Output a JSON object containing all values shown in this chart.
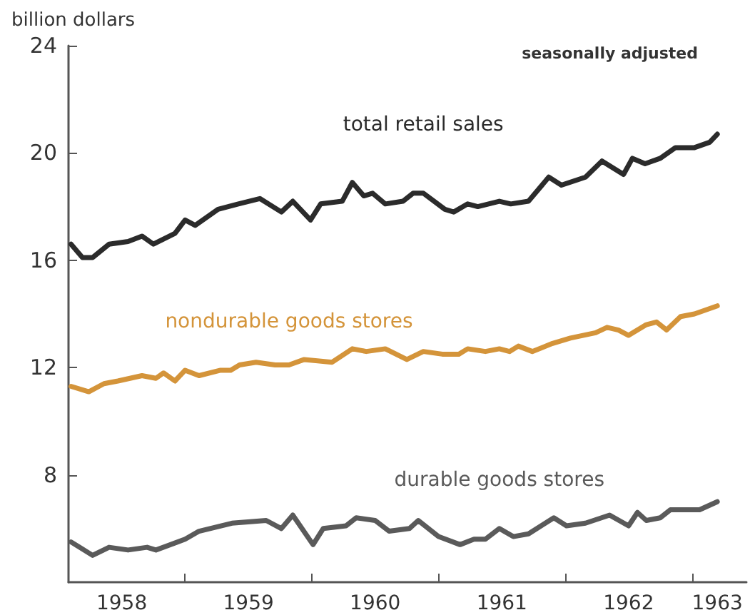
{
  "chart_data": {
    "type": "line",
    "ylabel": "billion dollars",
    "annotations": [
      "seasonally adjusted"
    ],
    "xlim": [
      1958.08,
      1963.43
    ],
    "ylim": [
      4,
      24
    ],
    "yticks": [
      8,
      12,
      16,
      20,
      24
    ],
    "xticks": [
      {
        "value": 1959,
        "label": null
      },
      {
        "value": 1960,
        "label": null
      },
      {
        "value": 1961,
        "label": null
      },
      {
        "value": 1962,
        "label": null
      },
      {
        "value": 1963,
        "label": null
      },
      {
        "value": 1958.5,
        "label": "1958"
      },
      {
        "value": 1959.5,
        "label": "1959"
      },
      {
        "value": 1960.5,
        "label": "1960"
      },
      {
        "value": 1961.5,
        "label": "1961"
      },
      {
        "value": 1962.5,
        "label": "1962"
      },
      {
        "value": 1963.2,
        "label": "1963"
      }
    ],
    "grid": false,
    "legend": false,
    "marker": "none",
    "line_style": "solid",
    "series": [
      {
        "name": "total retail sales",
        "color": "#2b2b2b",
        "x": [
          1958.1,
          1958.19,
          1958.27,
          1958.4,
          1958.55,
          1958.66,
          1958.75,
          1958.92,
          1959.0,
          1959.08,
          1959.26,
          1959.42,
          1959.59,
          1959.76,
          1959.85,
          1959.99,
          1960.07,
          1960.24,
          1960.32,
          1960.41,
          1960.48,
          1960.58,
          1960.72,
          1960.8,
          1960.88,
          1961.05,
          1961.12,
          1961.23,
          1961.31,
          1961.48,
          1961.57,
          1961.71,
          1961.87,
          1961.97,
          1962.16,
          1962.29,
          1962.46,
          1962.53,
          1962.63,
          1962.75,
          1962.87,
          1963.02,
          1963.14,
          1963.2
        ],
        "values": [
          16.6,
          16.1,
          16.1,
          16.6,
          16.7,
          16.9,
          16.6,
          17.0,
          17.5,
          17.3,
          17.9,
          18.1,
          18.3,
          17.8,
          18.2,
          17.5,
          18.1,
          18.2,
          18.9,
          18.4,
          18.5,
          18.1,
          18.2,
          18.5,
          18.5,
          17.9,
          17.8,
          18.1,
          18.0,
          18.2,
          18.1,
          18.2,
          19.1,
          18.8,
          19.1,
          19.7,
          19.2,
          19.8,
          19.6,
          19.8,
          20.2,
          20.2,
          20.4,
          20.7
        ]
      },
      {
        "name": "nondurable goods stores",
        "color": "#d4943a",
        "x": [
          1958.1,
          1958.24,
          1958.36,
          1958.47,
          1958.66,
          1958.77,
          1958.83,
          1958.92,
          1959.0,
          1959.11,
          1959.28,
          1959.36,
          1959.43,
          1959.56,
          1959.71,
          1959.82,
          1959.94,
          1960.16,
          1960.32,
          1960.43,
          1960.58,
          1960.75,
          1960.88,
          1961.03,
          1961.16,
          1961.23,
          1961.37,
          1961.48,
          1961.56,
          1961.63,
          1961.74,
          1961.9,
          1962.04,
          1962.24,
          1962.33,
          1962.42,
          1962.5,
          1962.64,
          1962.72,
          1962.8,
          1962.91,
          1963.02,
          1963.2
        ],
        "values": [
          11.3,
          11.1,
          11.4,
          11.5,
          11.7,
          11.6,
          11.8,
          11.5,
          11.9,
          11.7,
          11.9,
          11.9,
          12.1,
          12.2,
          12.1,
          12.1,
          12.3,
          12.2,
          12.7,
          12.6,
          12.7,
          12.3,
          12.6,
          12.5,
          12.5,
          12.7,
          12.6,
          12.7,
          12.6,
          12.8,
          12.6,
          12.9,
          13.1,
          13.3,
          13.5,
          13.4,
          13.2,
          13.6,
          13.7,
          13.4,
          13.9,
          14.0,
          14.3
        ]
      },
      {
        "name": "durable goods stores",
        "color": "#5a5a5a",
        "x": [
          1958.1,
          1958.27,
          1958.4,
          1958.55,
          1958.7,
          1958.77,
          1959.0,
          1959.11,
          1959.37,
          1959.64,
          1959.76,
          1959.85,
          1960.01,
          1960.09,
          1960.27,
          1960.35,
          1960.5,
          1960.61,
          1960.77,
          1960.84,
          1961.0,
          1961.17,
          1961.28,
          1961.37,
          1961.48,
          1961.59,
          1961.71,
          1961.91,
          1962.01,
          1962.16,
          1962.35,
          1962.5,
          1962.57,
          1962.64,
          1962.75,
          1962.83,
          1963.06,
          1963.2
        ],
        "values": [
          5.5,
          5.0,
          5.3,
          5.2,
          5.3,
          5.2,
          5.6,
          5.9,
          6.2,
          6.3,
          6.0,
          6.5,
          5.4,
          6.0,
          6.1,
          6.4,
          6.3,
          5.9,
          6.0,
          6.3,
          5.7,
          5.4,
          5.6,
          5.6,
          6.0,
          5.7,
          5.8,
          6.4,
          6.1,
          6.2,
          6.5,
          6.1,
          6.6,
          6.3,
          6.4,
          6.7,
          6.7,
          7.0
        ]
      }
    ]
  }
}
